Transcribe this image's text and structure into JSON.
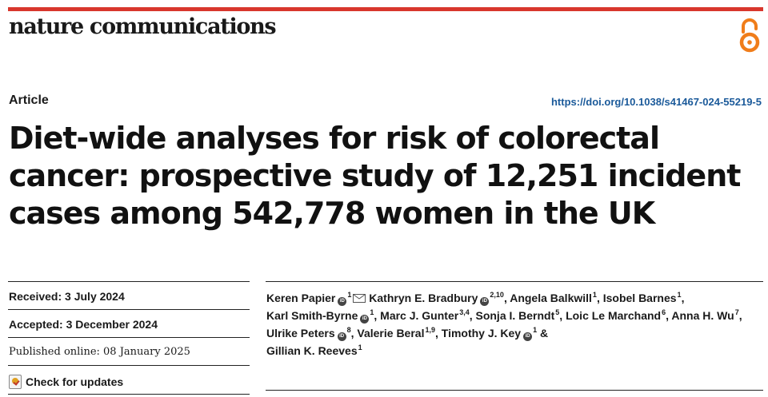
{
  "journal": {
    "name": "nature communications"
  },
  "header": {
    "article_type": "Article",
    "doi": "https://doi.org/10.1038/s41467-024-55219-5"
  },
  "title": "Diet-wide analyses for risk of colorectal cancer: prospective study of 12,251 incident cases among 542,778 women in the UK",
  "meta": {
    "received": "Received: 3 July 2024",
    "accepted": "Accepted: 3 December 2024",
    "published": "Published online: 08 January 2025",
    "check_updates": "Check for updates"
  },
  "authors": [
    {
      "name": "Keren Papier",
      "sup": "1",
      "sep": " "
    },
    {
      "name": "Kathryn E. Bradbury",
      "sup": "2,10",
      "sep": ", "
    },
    {
      "name": "Angela Balkwill",
      "sup": "1",
      "sep": ", "
    },
    {
      "name": "Isobel Barnes",
      "sup": "1",
      "sep": ", "
    },
    {
      "name": "Karl Smith-Byrne",
      "sup": "1",
      "sep": ", "
    },
    {
      "name": "Marc J. Gunter",
      "sup": "3,4",
      "sep": ", "
    },
    {
      "name": "Sonja I. Berndt",
      "sup": "5",
      "sep": ", "
    },
    {
      "name": "Loic Le Marchand",
      "sup": "6",
      "sep": ", "
    },
    {
      "name": "Anna H. Wu",
      "sup": "7",
      "sep": ", "
    },
    {
      "name": "Ulrike Peters",
      "sup": "8",
      "sep": ", "
    },
    {
      "name": "Valerie Beral",
      "sup": "1,9",
      "sep": ", "
    },
    {
      "name": "Timothy J. Key",
      "sup": "1",
      "sep": " & "
    },
    {
      "name": "Gillian K. Reeves",
      "sup": "1",
      "sep": ""
    }
  ],
  "icons": {
    "orcid_text": "iD",
    "brand_color": "#d8372d",
    "link_color": "#1b5a9a",
    "oa_color": "#f07d1a"
  }
}
